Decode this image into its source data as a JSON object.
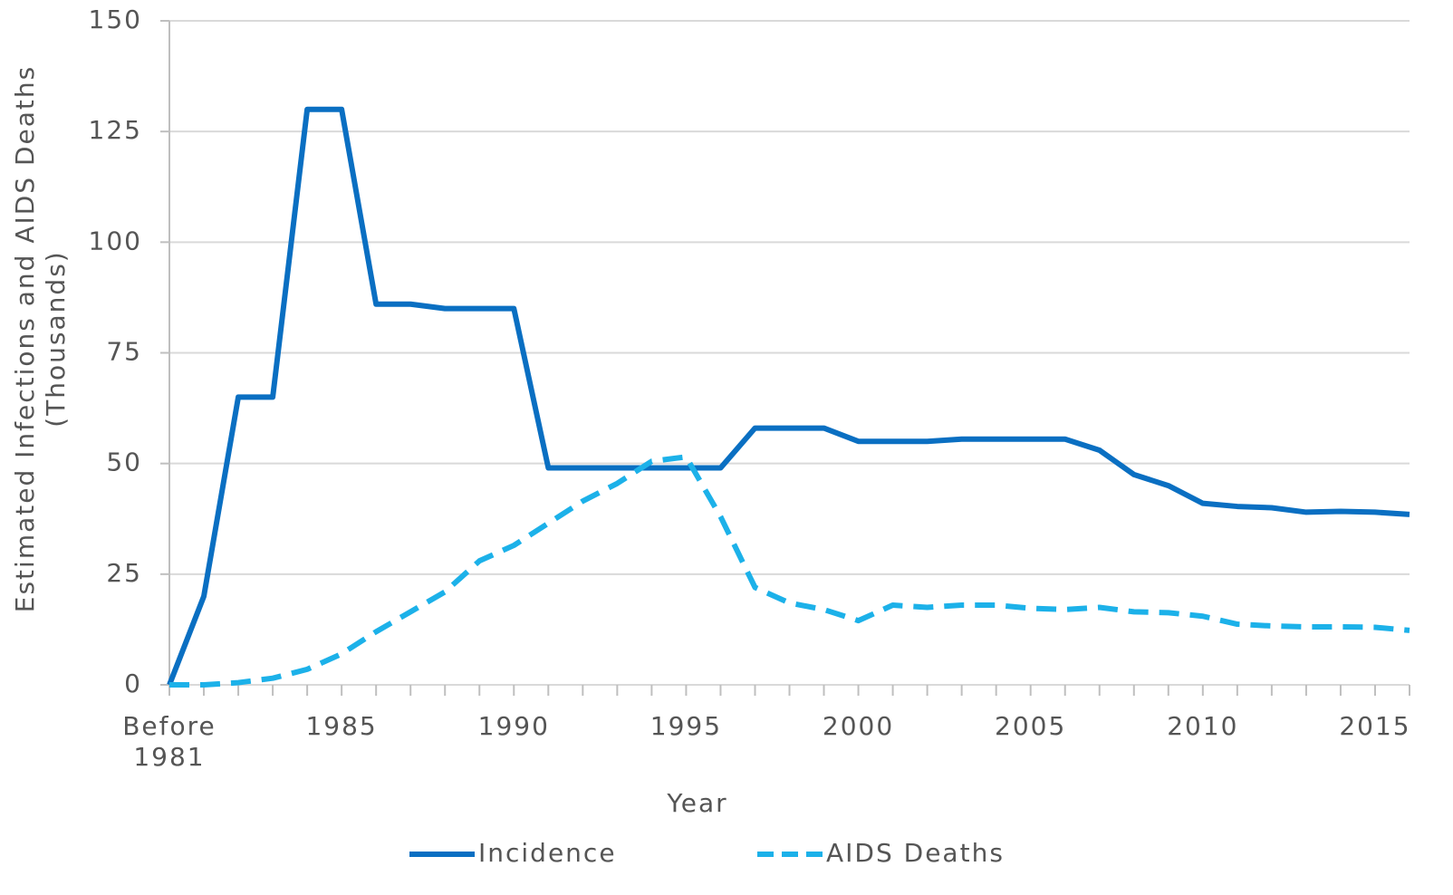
{
  "chart_data": {
    "type": "line",
    "xlabel": "Year",
    "ylabel": "Estimated Infections and AIDS Deaths (Thousands)",
    "categories": [
      "Before 1981",
      null,
      null,
      null,
      null,
      "1985",
      null,
      null,
      null,
      null,
      "1990",
      null,
      null,
      null,
      null,
      "1995",
      null,
      null,
      null,
      null,
      "2000",
      null,
      null,
      null,
      null,
      "2005",
      null,
      null,
      null,
      null,
      "2010",
      null,
      null,
      null,
      null,
      "2015",
      null
    ],
    "series": [
      {
        "name": "Incidence",
        "color": "#0a6fc2",
        "dashed": false,
        "values": [
          0,
          20,
          65,
          65,
          130,
          130,
          86,
          86,
          85,
          85,
          85,
          49,
          49,
          49,
          49,
          49,
          49,
          58,
          58,
          58,
          55,
          55,
          55,
          55.5,
          55.5,
          55.5,
          55.5,
          53,
          47.5,
          45,
          41,
          40.3,
          40,
          39,
          39.2,
          39,
          38.5
        ]
      },
      {
        "name": "AIDS Deaths",
        "color": "#1cb1e9",
        "dashed": true,
        "values": [
          0,
          0,
          0.5,
          1.5,
          3.5,
          7,
          12,
          16.5,
          21,
          28,
          31.5,
          36.5,
          41.5,
          45.5,
          50.5,
          51.5,
          38,
          22,
          18.5,
          17,
          14.5,
          18,
          17.5,
          18,
          18,
          17.3,
          17,
          17.5,
          16.5,
          16.3,
          15.5,
          13.7,
          13.3,
          13.1,
          13.1,
          13,
          12.3
        ]
      }
    ],
    "ylim": [
      0,
      150
    ],
    "yticks": [
      0,
      25,
      50,
      75,
      100,
      125,
      150
    ],
    "grid": true,
    "legend": "bottom"
  }
}
